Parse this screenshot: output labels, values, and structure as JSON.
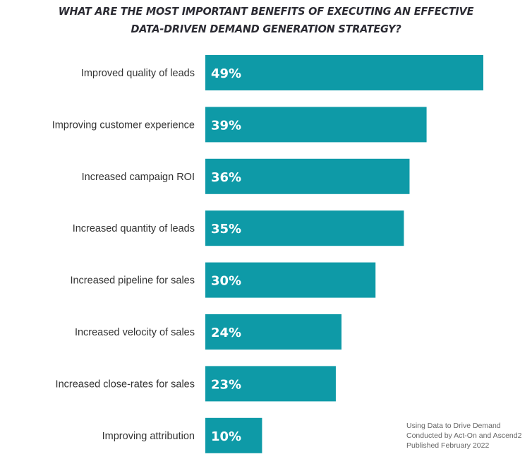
{
  "chart_data": {
    "type": "bar",
    "orientation": "horizontal",
    "title_lines": [
      "WHAT ARE THE MOST IMPORTANT BENEFITS OF EXECUTING AN EFFECTIVE",
      "DATA-DRIVEN DEMAND GENERATION STRATEGY?"
    ],
    "categories": [
      "Improved quality of leads",
      "Improving customer experience",
      "Increased campaign ROI",
      "Increased quantity of leads",
      "Increased pipeline for sales",
      "Increased velocity of sales",
      "Increased close-rates for sales",
      "Improving attribution"
    ],
    "values": [
      49,
      39,
      36,
      35,
      30,
      24,
      23,
      10
    ],
    "value_labels": [
      "49%",
      "39%",
      "36%",
      "35%",
      "30%",
      "24%",
      "23%",
      "10%"
    ],
    "xlim": [
      0,
      49
    ],
    "grid": false,
    "bar_color": "#0e9aa7",
    "label_color": "#ffffff"
  },
  "footnote": [
    "Using Data to Drive Demand",
    "Conducted by Act-On and Ascend2",
    "Published February 2022"
  ]
}
